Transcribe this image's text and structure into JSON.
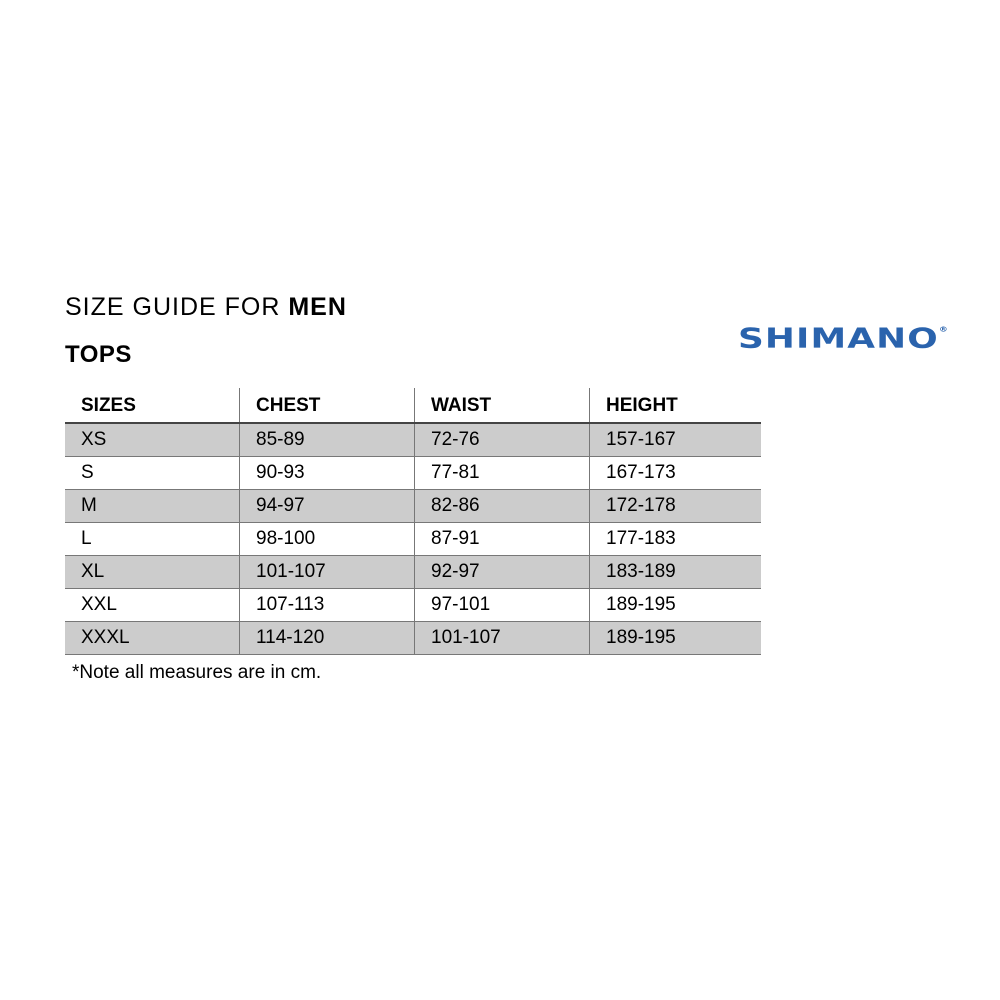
{
  "heading": {
    "prefix": "SIZE GUIDE FOR ",
    "emphasis": "MEN"
  },
  "section": "TOPS",
  "brand": {
    "logo_text": "SHIMANO",
    "registered": "®",
    "color": "#2a63ad"
  },
  "table": {
    "headers": [
      "SIZES",
      "CHEST",
      "WAIST",
      "HEIGHT"
    ],
    "rows": [
      [
        "XS",
        "85-89",
        "72-76",
        "157-167"
      ],
      [
        "S",
        "90-93",
        "77-81",
        "167-173"
      ],
      [
        "M",
        "94-97",
        "82-86",
        "172-178"
      ],
      [
        "L",
        "98-100",
        "87-91",
        "177-183"
      ],
      [
        "XL",
        "101-107",
        "92-97",
        "183-189"
      ],
      [
        "XXL",
        "107-113",
        "97-101",
        "189-195"
      ],
      [
        "XXXL",
        "114-120",
        "101-107",
        "189-195"
      ]
    ],
    "shade_color": "#cccccc"
  },
  "note": "*Note all measures are in cm."
}
